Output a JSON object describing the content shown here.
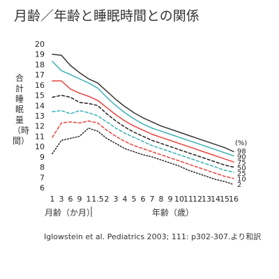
{
  "title": "月齢／年齢と睡眠時間との関係",
  "source": "Iglowstein et al. Pediatrics 2003; 111: p302-307.より和訳",
  "chart_data": {
    "type": "line",
    "title": "",
    "ylabel": "合計睡眠量（時間）",
    "xgroup_months": "月齢（か月）",
    "xgroup_years": "年齢（歳）",
    "percentile_unit": "(%)",
    "ylim": [
      6,
      20
    ],
    "yticks": [
      6,
      7,
      8,
      9,
      10,
      11,
      12,
      13,
      14,
      15,
      16,
      17,
      18,
      19,
      20
    ],
    "categories": [
      "1",
      "3",
      "6",
      "9",
      "1",
      "1.5",
      "2",
      "3",
      "4",
      "5",
      "6",
      "7",
      "8",
      "9",
      "10",
      "11",
      "12",
      "13",
      "14",
      "15",
      "16"
    ],
    "x_group": [
      "months",
      "months",
      "months",
      "months",
      "years",
      "years",
      "years",
      "years",
      "years",
      "years",
      "years",
      "years",
      "years",
      "years",
      "years",
      "years",
      "years",
      "years",
      "years",
      "years",
      "years"
    ],
    "x": [
      "1 か月",
      "3 か月",
      "6 か月",
      "9 か月",
      "1 歳",
      "1.5 歳",
      "2 歳",
      "3 歳",
      "4 歳",
      "5 歳",
      "6 歳",
      "7 歳",
      "8 歳",
      "9 歳",
      "10 歳",
      "11 歳",
      "12 歳",
      "13 歳",
      "14 歳",
      "15 歳",
      "16 歳"
    ],
    "grid": false,
    "series": [
      {
        "name": "98",
        "color": "#333333",
        "dash": "solid",
        "values": [
          19.0,
          18.9,
          17.9,
          17.2,
          16.6,
          16.2,
          15.4,
          14.6,
          13.9,
          13.3,
          12.8,
          12.4,
          12.0,
          11.7,
          11.4,
          11.1,
          10.8,
          10.5,
          10.2,
          9.9,
          9.5
        ]
      },
      {
        "name": "90",
        "color": "#3ab0b5",
        "dash": "solid",
        "values": [
          18.3,
          17.4,
          17.0,
          16.6,
          16.2,
          15.7,
          14.8,
          14.0,
          13.3,
          12.7,
          12.2,
          11.8,
          11.5,
          11.2,
          10.9,
          10.6,
          10.3,
          10.0,
          9.7,
          9.4,
          9.1
        ]
      },
      {
        "name": "75",
        "color": "#e8413c",
        "dash": "solid",
        "values": [
          16.4,
          16.4,
          15.6,
          15.2,
          14.9,
          14.5,
          13.8,
          13.1,
          12.5,
          12.0,
          11.6,
          11.2,
          10.9,
          10.6,
          10.3,
          10.0,
          9.7,
          9.4,
          9.1,
          8.8,
          8.5
        ]
      },
      {
        "name": "50",
        "color": "#222222",
        "dash": "dashed",
        "values": [
          14.8,
          15.0,
          14.8,
          14.3,
          14.2,
          14.0,
          13.2,
          12.5,
          11.9,
          11.4,
          11.0,
          10.6,
          10.3,
          10.0,
          9.7,
          9.4,
          9.1,
          8.8,
          8.5,
          8.2,
          8.0
        ]
      },
      {
        "name": "25",
        "color": "#3ab0b5",
        "dash": "dashed",
        "values": [
          13.4,
          13.5,
          13.2,
          13.5,
          13.3,
          13.0,
          12.4,
          11.8,
          11.3,
          10.9,
          10.5,
          10.1,
          9.8,
          9.5,
          9.2,
          8.9,
          8.6,
          8.3,
          8.0,
          7.7,
          7.5
        ]
      },
      {
        "name": "10",
        "color": "#e8413c",
        "dash": "dashed",
        "values": [
          10.9,
          12.3,
          12.4,
          12.3,
          12.5,
          12.3,
          11.6,
          11.0,
          10.5,
          10.1,
          9.8,
          9.5,
          9.2,
          8.9,
          8.6,
          8.3,
          8.0,
          7.7,
          7.4,
          7.1,
          6.9
        ]
      },
      {
        "name": "2",
        "color": "#222222",
        "dash": "dotted",
        "values": [
          9.3,
          10.6,
          10.8,
          11.0,
          11.8,
          11.5,
          10.8,
          10.3,
          9.8,
          9.5,
          9.2,
          9.0,
          8.7,
          8.4,
          8.1,
          7.7,
          7.4,
          7.1,
          6.8,
          6.6,
          6.3
        ]
      }
    ]
  }
}
